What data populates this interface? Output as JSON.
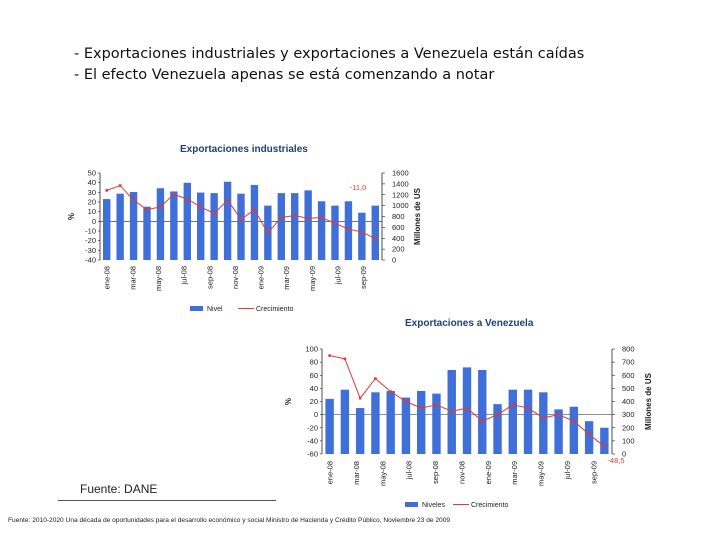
{
  "heading": {
    "line1": "- Exportaciones industriales y exportaciones a Venezuela están caídas",
    "line2": "- El efecto Venezuela apenas se está comenzando a notar"
  },
  "colors": {
    "bar": "#3f6fd8",
    "line": "#e03a3a",
    "title": "#1f3f7a",
    "axis": "#222222"
  },
  "chart_data": [
    {
      "type": "bar",
      "title": "Exportaciones industriales",
      "ylabel_left": "%",
      "ylabel_right": "Millones de US",
      "ylim_left": [
        -40,
        50
      ],
      "ylim_right": [
        0,
        1600
      ],
      "left_ticks": [
        "50",
        "40",
        "30",
        "20",
        "10",
        "0",
        "-10",
        "-20",
        "-30",
        "-40"
      ],
      "right_ticks": [
        "1600",
        "1400",
        "1200",
        "1000",
        "800",
        "600",
        "400",
        "200",
        "0"
      ],
      "x_labels": [
        "ene-08",
        "mar-08",
        "may-08",
        "jul-08",
        "sep-08",
        "nov-08",
        "ene-09",
        "mar-09",
        "may-09",
        "jul-09",
        "sep-09"
      ],
      "annotation": "-11,0",
      "series": [
        {
          "name": "Nivel",
          "kind": "bar",
          "axis": "right",
          "values": [
            1120,
            1220,
            1250,
            980,
            1320,
            1260,
            1420,
            1240,
            1230,
            1440,
            1220,
            1380,
            1000,
            1230,
            1230,
            1280,
            1080,
            1000,
            1080,
            870,
            1000
          ]
        },
        {
          "name": "Crecimiento",
          "kind": "line",
          "axis": "left",
          "values": [
            32,
            37,
            22,
            12,
            15,
            28,
            23,
            15,
            8,
            22,
            2,
            12,
            -12,
            4,
            6,
            3,
            4,
            -2,
            -8,
            -11,
            -18
          ]
        }
      ],
      "legend": [
        "Nivel",
        "Crecimiento"
      ]
    },
    {
      "type": "bar",
      "title": "Exportaciones a Venezuela",
      "ylabel_left": "%",
      "ylabel_right": "Millones de US",
      "ylim_left": [
        -60,
        100
      ],
      "ylim_right": [
        0,
        800
      ],
      "left_ticks": [
        "100",
        "80",
        "60",
        "40",
        "20",
        "0",
        "-20",
        "-40",
        "-60"
      ],
      "right_ticks": [
        "800",
        "700",
        "600",
        "500",
        "400",
        "300",
        "200",
        "100",
        "0"
      ],
      "x_labels": [
        "ene-08",
        "mar-08",
        "may-08",
        "jul-08",
        "sep-08",
        "nov-08",
        "ene-09",
        "mar-09",
        "may-09",
        "jul-09",
        "sep-09"
      ],
      "annotation": "-48,5",
      "series": [
        {
          "name": "Niveles",
          "kind": "bar",
          "axis": "right",
          "values": [
            420,
            490,
            350,
            470,
            480,
            430,
            480,
            460,
            640,
            660,
            640,
            380,
            490,
            490,
            470,
            340,
            360,
            250,
            200
          ]
        },
        {
          "name": "Crecimiento",
          "kind": "line",
          "axis": "left",
          "values": [
            90,
            85,
            25,
            55,
            35,
            20,
            10,
            15,
            5,
            10,
            -10,
            0,
            15,
            10,
            -5,
            0,
            -10,
            -30,
            -48.5
          ]
        }
      ],
      "legend": [
        "Niveles",
        "Crecimiento"
      ]
    }
  ],
  "source": "Fuente: DANE",
  "footer": "Fuente: 2010-2020 Una década de oportunidades para el desarrollo económico y social Ministro de Hacienda y Crédito Público, Noviembre 23 de 2009"
}
